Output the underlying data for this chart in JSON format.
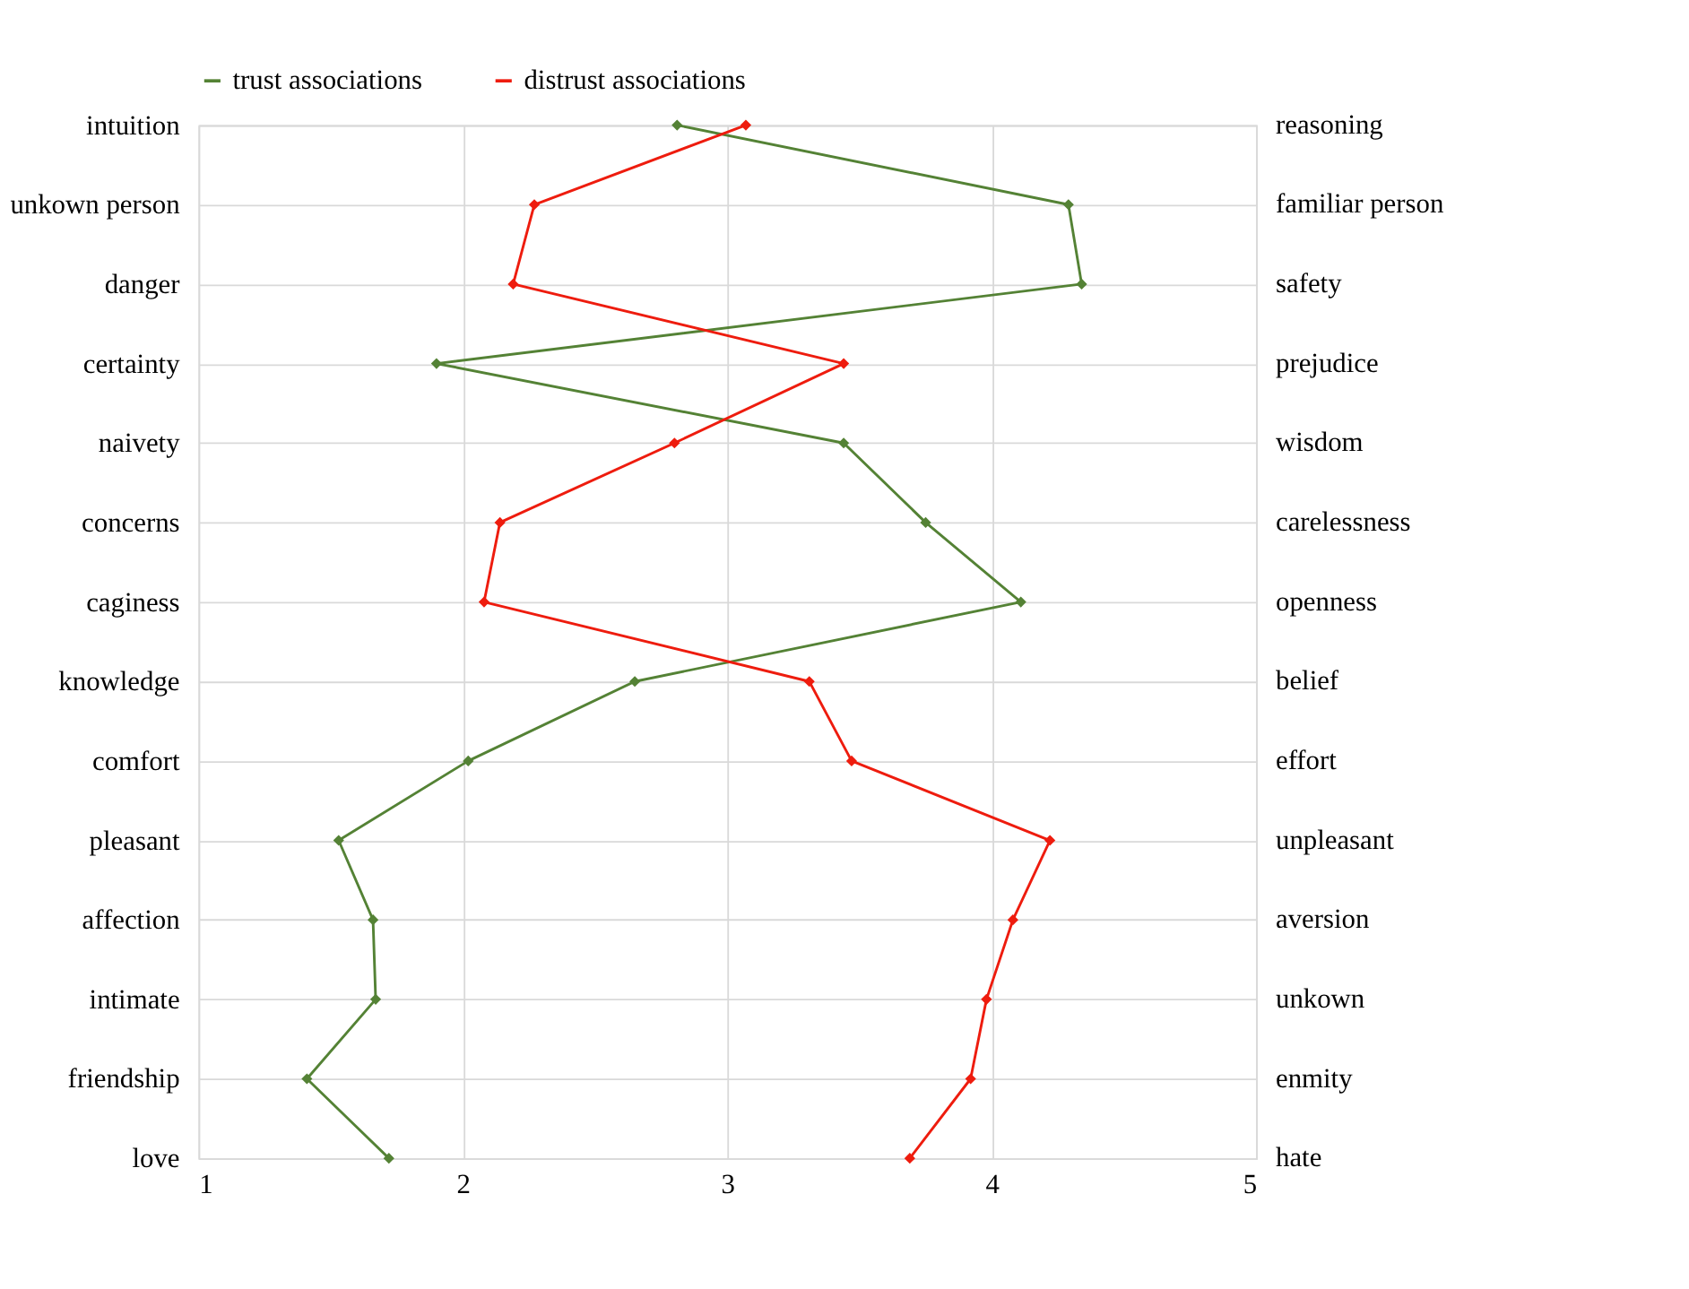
{
  "chart_data": {
    "type": "line",
    "orientation": "horizontal",
    "categories": [
      "intuition",
      "unkown person",
      "danger",
      "certainty",
      "naivety",
      "concerns",
      "caginess",
      "knowledge",
      "comfort",
      "pleasant",
      "affection",
      "intimate",
      "friendship",
      "love"
    ],
    "y2_categories": [
      "reasoning",
      "familiar person",
      "safety",
      "prejudice",
      "wisdom",
      "carelessness",
      "openness",
      "belief",
      "effort",
      "unpleasant",
      "aversion",
      "unkown",
      "enmity",
      "hate"
    ],
    "series": [
      {
        "name": "trust associations",
        "color": "#548235",
        "values": [
          2.81,
          4.29,
          4.34,
          1.9,
          3.44,
          3.75,
          4.11,
          2.65,
          2.02,
          1.53,
          1.66,
          1.67,
          1.41,
          1.72
        ]
      },
      {
        "name": "distrust associations",
        "color": "#ee1c0e",
        "values": [
          3.07,
          2.27,
          2.19,
          3.44,
          2.8,
          2.14,
          2.08,
          3.31,
          3.47,
          4.22,
          4.08,
          3.98,
          3.92,
          3.69
        ]
      }
    ],
    "xlim": [
      1,
      5
    ],
    "xticks": [
      1,
      2,
      3,
      4,
      5
    ],
    "grid": true,
    "legend": "top",
    "marker": "diamond",
    "line_style": "solid"
  }
}
